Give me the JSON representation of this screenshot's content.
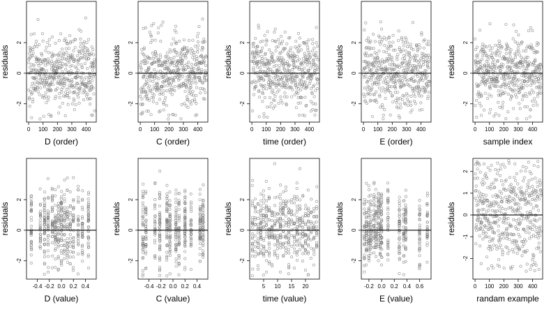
{
  "figure": {
    "ylabel": "residuals",
    "colors": {
      "point": "#7a7a7a",
      "zero_line": "#000000",
      "frame": "#000000"
    }
  },
  "chart_data": [
    {
      "type": "scatter",
      "xlabel": "D (order)",
      "ylabel": "residuals",
      "xlim": [
        -15,
        470
      ],
      "ylim": [
        -3.2,
        4.7
      ],
      "xticks": [
        0,
        100,
        200,
        300,
        400
      ],
      "yticks": [
        -2,
        0,
        2
      ],
      "reference_line_y": 0,
      "point_count": 480,
      "seed": 11,
      "x_kind": "index",
      "y_range": [
        -3,
        4.5
      ]
    },
    {
      "type": "scatter",
      "xlabel": "C (order)",
      "ylabel": "residuals",
      "xlim": [
        -15,
        470
      ],
      "ylim": [
        -3.2,
        4.7
      ],
      "xticks": [
        0,
        100,
        200,
        300,
        400
      ],
      "yticks": [
        -2,
        0,
        2
      ],
      "reference_line_y": 0,
      "point_count": 480,
      "seed": 23,
      "x_kind": "index",
      "y_range": [
        -3,
        4.5
      ]
    },
    {
      "type": "scatter",
      "xlabel": "time (order)",
      "ylabel": "residuals",
      "xlim": [
        -15,
        470
      ],
      "ylim": [
        -3.2,
        4.7
      ],
      "xticks": [
        0,
        100,
        200,
        300,
        400
      ],
      "yticks": [
        -2,
        0,
        2
      ],
      "reference_line_y": 0,
      "point_count": 480,
      "seed": 37,
      "x_kind": "index",
      "y_range": [
        -3,
        4.5
      ]
    },
    {
      "type": "scatter",
      "xlabel": "E (order)",
      "ylabel": "residuals",
      "xlim": [
        -15,
        470
      ],
      "ylim": [
        -3.2,
        4.7
      ],
      "xticks": [
        0,
        100,
        200,
        300,
        400
      ],
      "yticks": [
        -2,
        0,
        2
      ],
      "reference_line_y": 0,
      "point_count": 480,
      "seed": 41,
      "x_kind": "index",
      "y_range": [
        -3,
        4.5
      ]
    },
    {
      "type": "scatter",
      "xlabel": "sample index",
      "ylabel": "residuals",
      "xlim": [
        -15,
        470
      ],
      "ylim": [
        -3.2,
        4.7
      ],
      "xticks": [
        0,
        100,
        200,
        300,
        400
      ],
      "yticks": [
        -2,
        0,
        2
      ],
      "reference_line_y": 0,
      "point_count": 480,
      "seed": 53,
      "x_kind": "index",
      "y_range": [
        -3,
        4.5
      ]
    },
    {
      "type": "scatter",
      "xlabel": "D (value)",
      "ylabel": "residuals",
      "xlim": [
        -0.58,
        0.58
      ],
      "ylim": [
        -3.2,
        4.7
      ],
      "xticks": [
        -0.4,
        -0.2,
        0.0,
        0.2,
        0.4
      ],
      "yticks": [
        -2,
        0,
        2
      ],
      "reference_line_y": 0,
      "point_count": 480,
      "seed": 67,
      "x_kind": "values",
      "x_values": [
        -0.5,
        -0.35,
        -0.28,
        -0.22,
        -0.15,
        -0.1,
        -0.05,
        0.0,
        0.05,
        0.1,
        0.15,
        0.2,
        0.28,
        0.35,
        0.45
      ],
      "y_range": [
        -3,
        4.5
      ]
    },
    {
      "type": "scatter",
      "xlabel": "C (value)",
      "ylabel": "residuals",
      "xlim": [
        -0.58,
        0.58
      ],
      "ylim": [
        -3.2,
        4.7
      ],
      "xticks": [
        -0.4,
        -0.2,
        0.0,
        0.2,
        0.4
      ],
      "yticks": [
        -2,
        0,
        2
      ],
      "reference_line_y": 0,
      "point_count": 480,
      "seed": 71,
      "x_kind": "values",
      "x_values": [
        -0.5,
        -0.45,
        -0.3,
        -0.22,
        -0.1,
        -0.05,
        0.05,
        0.1,
        0.2,
        0.3,
        0.45,
        0.5
      ],
      "y_range": [
        -3,
        4.5
      ]
    },
    {
      "type": "scatter",
      "xlabel": "time (value)",
      "ylabel": "residuals",
      "xlim": [
        0,
        25
      ],
      "ylim": [
        -3.2,
        4.7
      ],
      "xticks": [
        5,
        10,
        15,
        20
      ],
      "yticks": [
        -2,
        0,
        2
      ],
      "reference_line_y": 0,
      "point_count": 480,
      "seed": 83,
      "x_kind": "values",
      "x_values": [
        1,
        2,
        3,
        4,
        5,
        6,
        7,
        8,
        9,
        10,
        11,
        12,
        13,
        14,
        15,
        16,
        17,
        18,
        19,
        20,
        21,
        22,
        23,
        24
      ],
      "y_range": [
        -3,
        4.5
      ]
    },
    {
      "type": "scatter",
      "xlabel": "E (value)",
      "ylabel": "residuals",
      "xlim": [
        -0.32,
        0.78
      ],
      "ylim": [
        -3.2,
        4.7
      ],
      "xticks": [
        -0.2,
        0.0,
        0.2,
        0.4,
        0.6
      ],
      "yticks": [
        -2,
        0,
        2
      ],
      "reference_line_y": 0,
      "point_count": 480,
      "seed": 97,
      "x_kind": "values",
      "x_values": [
        -0.27,
        -0.24,
        -0.2,
        -0.17,
        -0.12,
        -0.09,
        -0.05,
        -0.02,
        0.0,
        0.1,
        0.28,
        0.35,
        0.38,
        0.6,
        0.72
      ],
      "y_range": [
        -3,
        4.5
      ]
    },
    {
      "type": "scatter",
      "xlabel": "randam example",
      "ylabel": "residuals",
      "xlim": [
        -15,
        470
      ],
      "ylim": [
        -2.95,
        2.6
      ],
      "xticks": [
        0,
        100,
        200,
        300,
        400
      ],
      "yticks": [
        -2,
        -1,
        0,
        1,
        2
      ],
      "reference_line_y": 0,
      "point_count": 480,
      "seed": 101,
      "x_kind": "index",
      "y_range": [
        -2.6,
        2.5
      ]
    }
  ]
}
